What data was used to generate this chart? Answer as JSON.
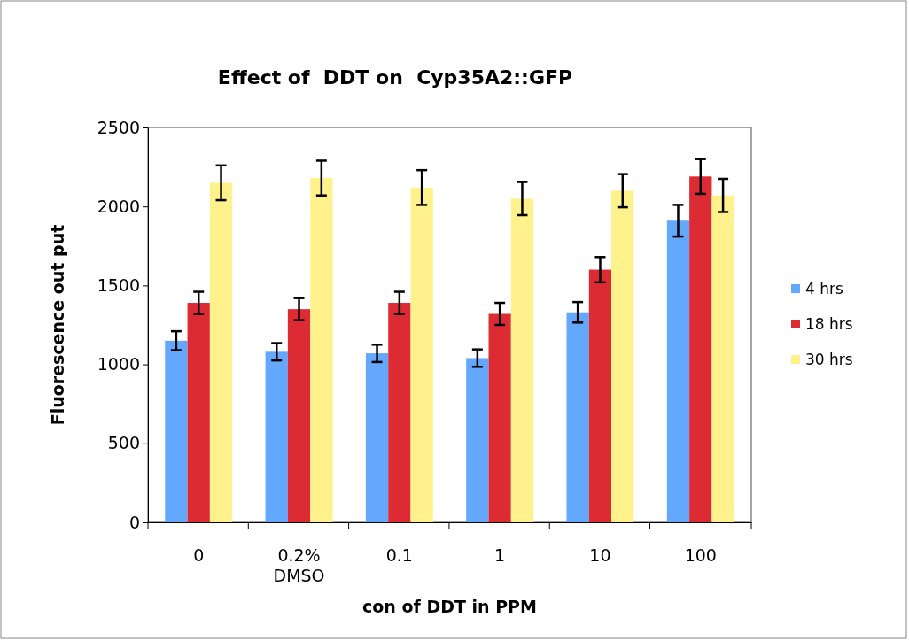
{
  "chart_data": {
    "type": "bar",
    "title": "Effect of  DDT on  Cyp35A2::GFP",
    "xlabel": "con of DDT in PPM",
    "ylabel": "Fluorescence out put",
    "categories": [
      "0",
      "0.2%\nDMSO",
      "0.1",
      "1",
      "10",
      "100"
    ],
    "series": [
      {
        "name": "4 hrs",
        "color": "#63a8fd",
        "values": [
          1150,
          1080,
          1070,
          1040,
          1330,
          1910
        ],
        "errors": [
          60,
          55,
          55,
          55,
          65,
          100
        ]
      },
      {
        "name": "18 hrs",
        "color": "#dc2b33",
        "values": [
          1390,
          1350,
          1390,
          1320,
          1600,
          2190
        ],
        "errors": [
          70,
          70,
          70,
          70,
          80,
          110
        ]
      },
      {
        "name": "30 hrs",
        "color": "#fff28c",
        "values": [
          2150,
          2180,
          2120,
          2050,
          2100,
          2070
        ],
        "errors": [
          110,
          110,
          110,
          105,
          105,
          105
        ]
      }
    ],
    "ylim": [
      0,
      2500
    ],
    "yticks": [
      0,
      500,
      1000,
      1500,
      2000,
      2500
    ],
    "legend": "right",
    "grid": false
  }
}
